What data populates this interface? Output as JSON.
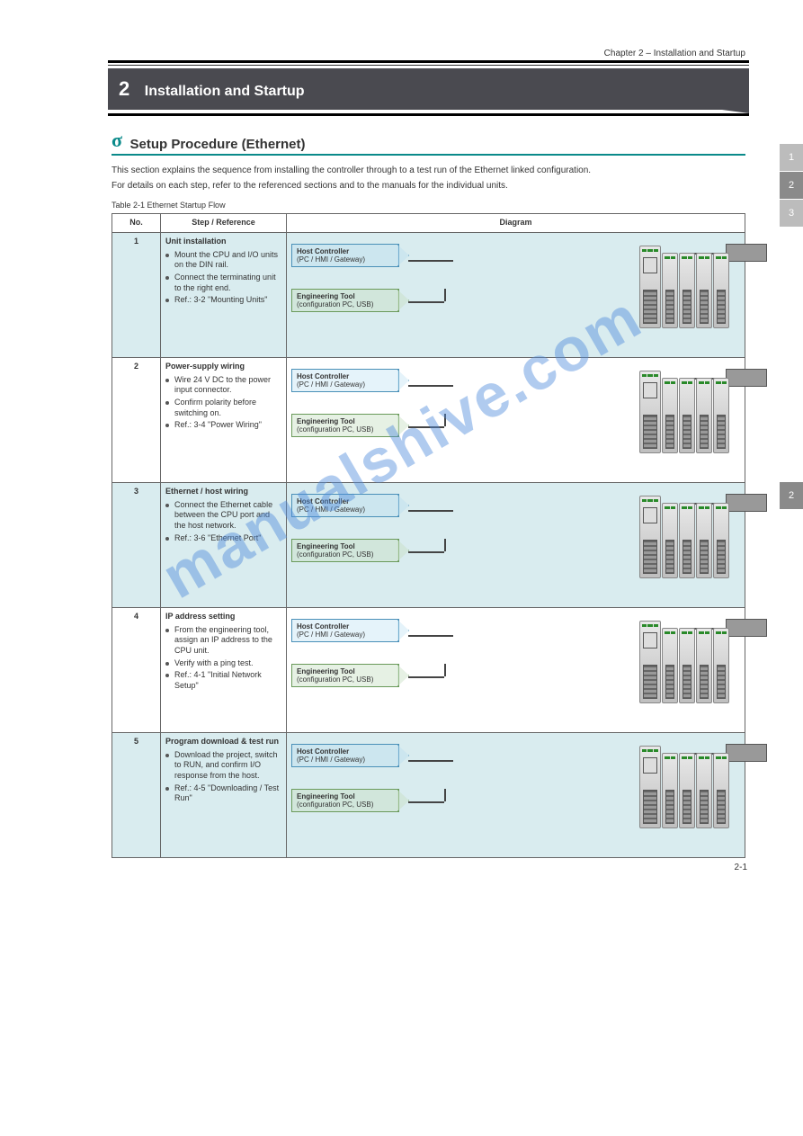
{
  "header": "Chapter 2 – Installation and Startup",
  "chapter": {
    "number": "2",
    "title": "Installation and Startup"
  },
  "section": {
    "icon": "σ",
    "title": "Setup Procedure (Ethernet)"
  },
  "intro": [
    "This section explains the sequence from installing the controller through to a test run of the Ethernet linked configuration.",
    "For details on each step, refer to the referenced sections and to the manuals for the individual units."
  ],
  "table_caption": "Table 2-1  Ethernet Startup Flow",
  "columns": [
    "No.",
    "Step / Reference",
    "Diagram"
  ],
  "watermark": "manualshive.com",
  "page_number": "2-1",
  "flags": {
    "blue": {
      "title": "Host Controller",
      "sub": "(PC / HMI / Gateway)"
    },
    "green": {
      "title": "Engineering Tool",
      "sub": "(configuration PC, USB)"
    }
  },
  "rows": [
    {
      "num": "1",
      "step_title": "Unit installation",
      "step_lines": [
        "Mount the CPU and I/O units on the DIN rail.",
        "Connect the terminating unit to the right end.",
        "Ref.: 3-2  \"Mounting Units\""
      ],
      "alt": true
    },
    {
      "num": "2",
      "step_title": "Power-supply wiring",
      "step_lines": [
        "Wire 24 V DC to the power input connector.",
        "Confirm polarity before switching on.",
        "Ref.: 3-4  \"Power Wiring\""
      ],
      "alt": false
    },
    {
      "num": "3",
      "step_title": "Ethernet / host wiring",
      "step_lines": [
        "Connect the Ethernet cable between the CPU port and the host network.",
        "Ref.: 3-6  \"Ethernet Port\""
      ],
      "alt": true
    },
    {
      "num": "4",
      "step_title": "IP address setting",
      "step_lines": [
        "From the engineering tool, assign an IP address to the CPU unit.",
        "Verify with a ping test.",
        "Ref.: 4-1  \"Initial Network Setup\""
      ],
      "alt": false
    },
    {
      "num": "5",
      "step_title": "Program download & test run",
      "step_lines": [
        "Download the project, switch to RUN, and confirm I/O response from the host.",
        "Ref.: 4-5  \"Downloading / Test Run\""
      ],
      "alt": true
    }
  ],
  "colors": {
    "teal": "#0a8a8a",
    "band": "#4a4a50",
    "row_alt": "#d9ecef",
    "flag_blue_border": "#4a90b8",
    "flag_green_border": "#6a9a5a",
    "wm": "rgba(80,140,220,.45)"
  },
  "tabs_top": [
    "1",
    "2",
    "3"
  ],
  "tabs_active": "2"
}
